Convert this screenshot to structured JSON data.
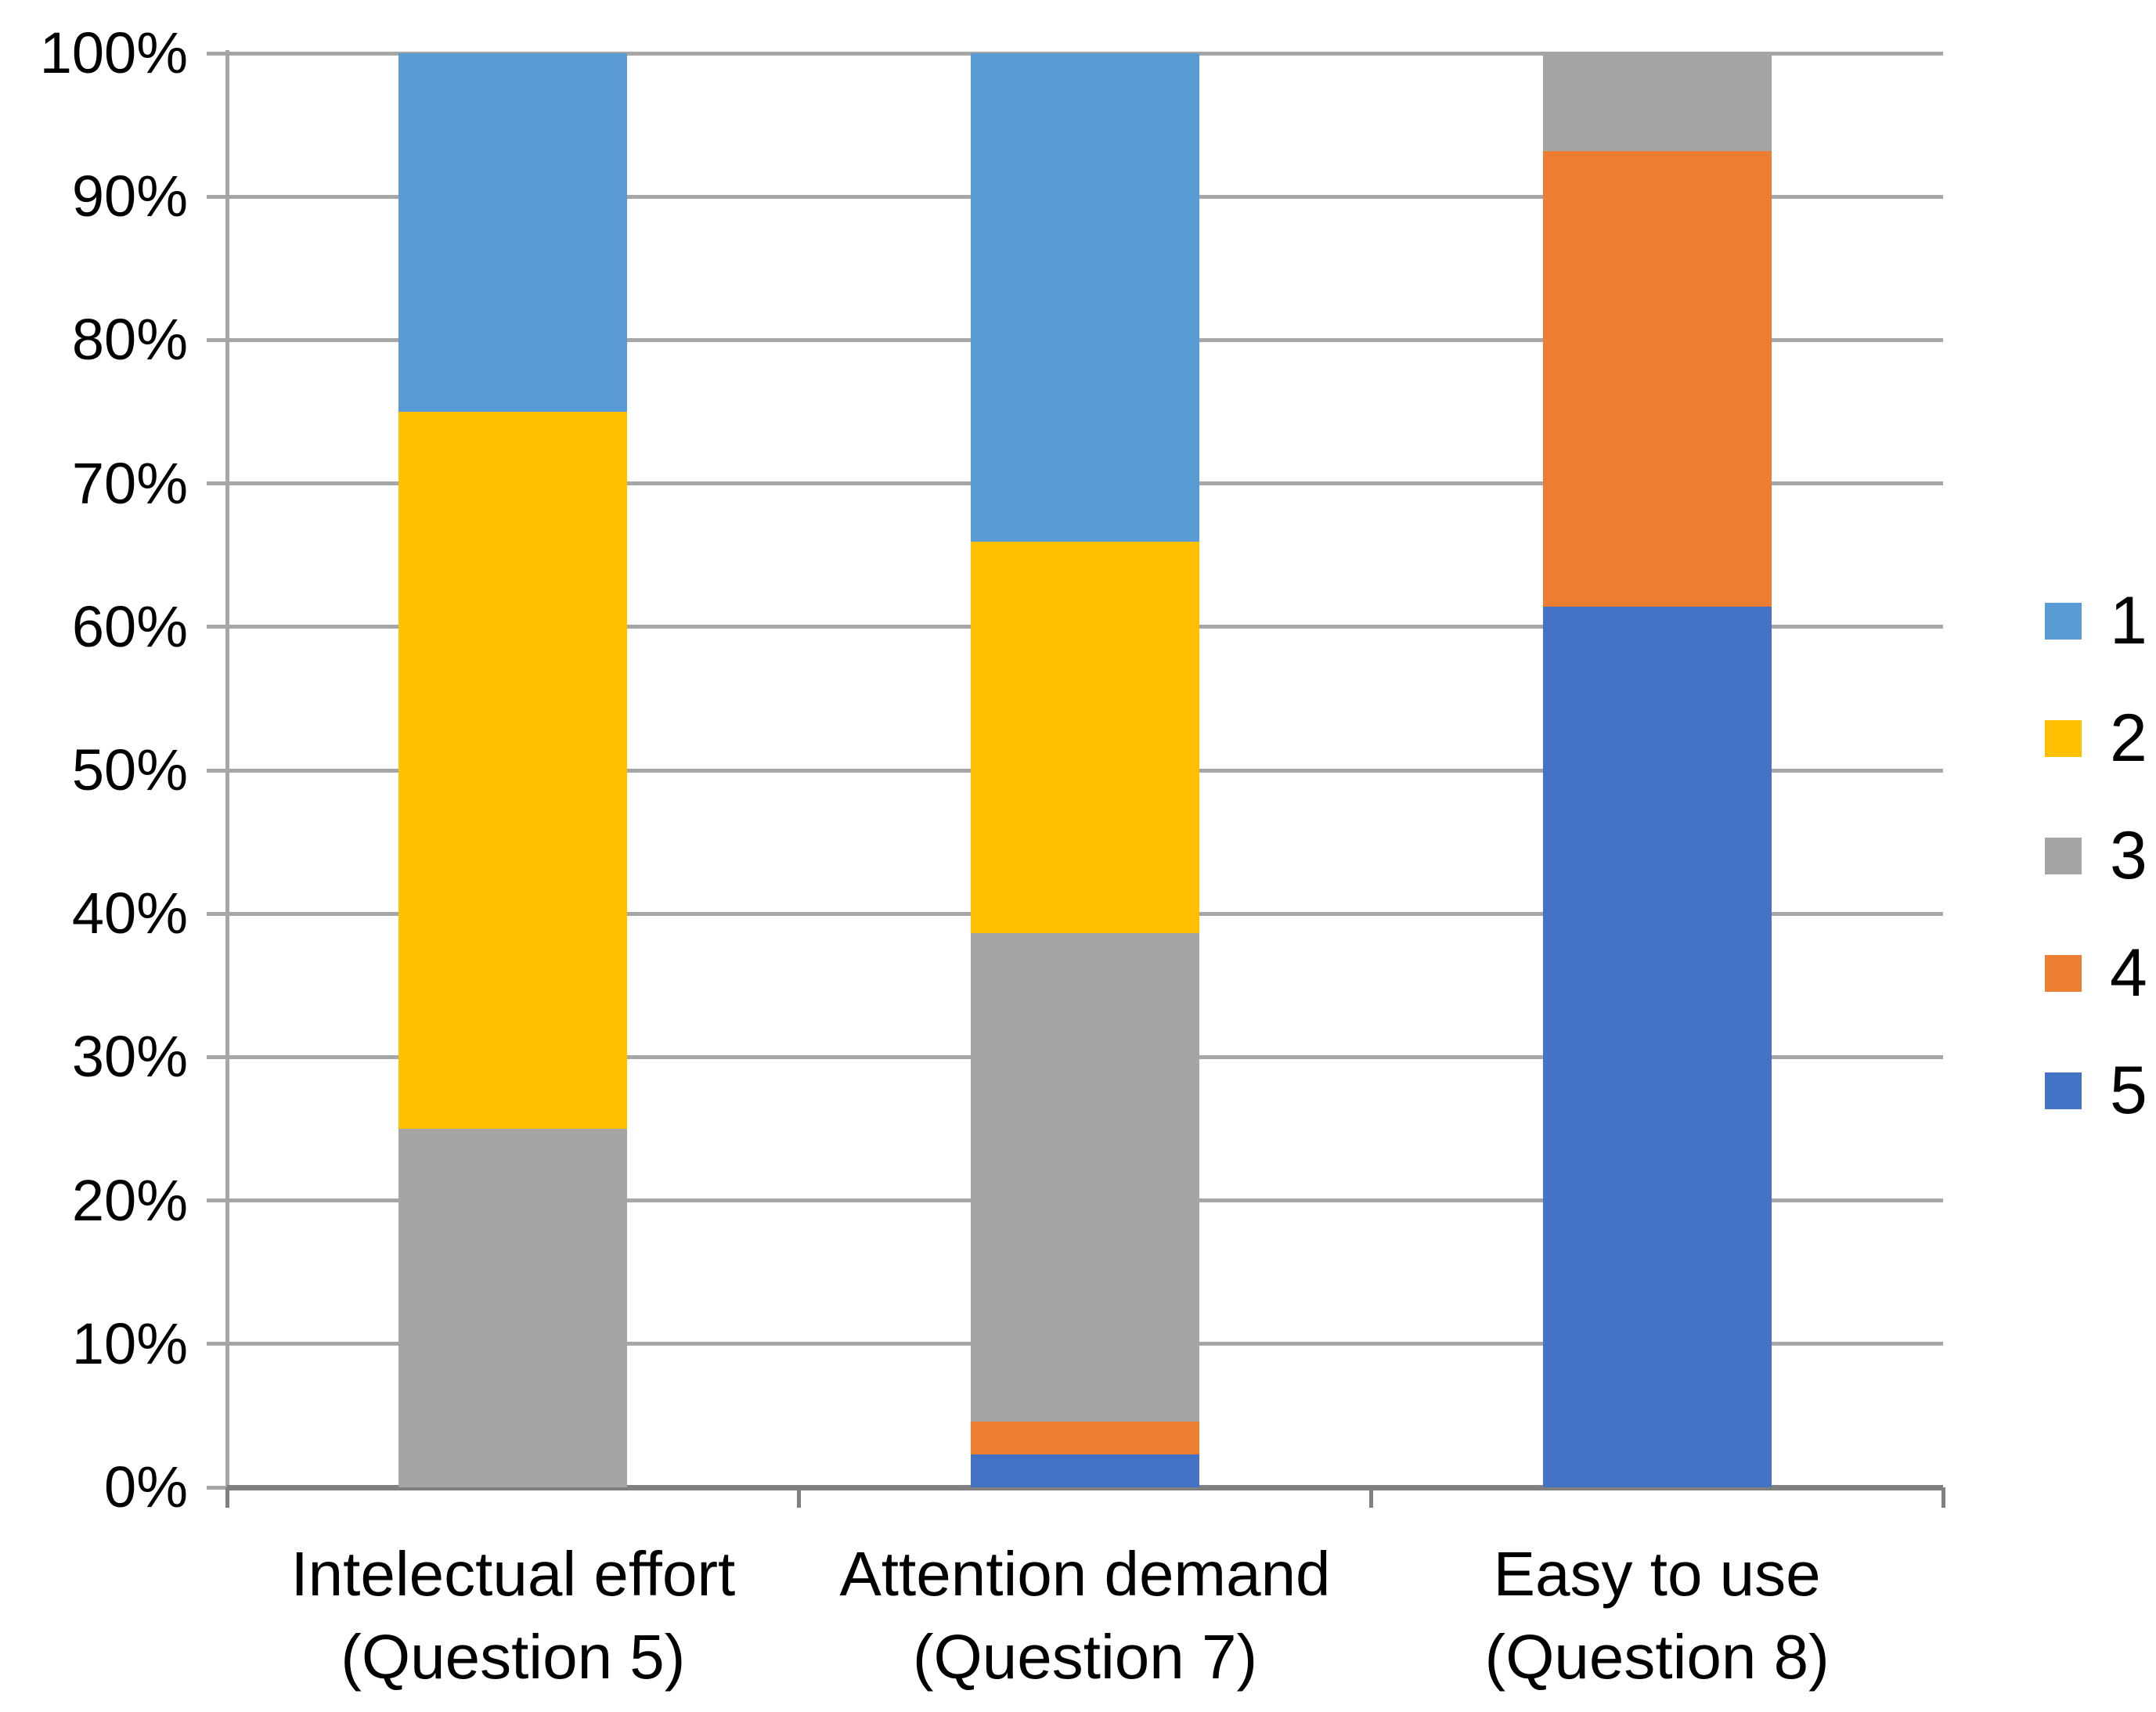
{
  "chart_data": {
    "type": "bar",
    "subtype": "stacked-100-percent",
    "orientation": "vertical",
    "title": "",
    "xlabel": "",
    "ylabel": "",
    "ylim": [
      0,
      100
    ],
    "y_unit": "%",
    "grid": {
      "horizontal": true,
      "vertical": false
    },
    "colors": {
      "gridline": "#A6A6A6",
      "axis": "#808080",
      "text": "#000000",
      "background": "#FFFFFF"
    },
    "y_ticks": [
      {
        "value": 0,
        "label": "0%"
      },
      {
        "value": 10,
        "label": "10%"
      },
      {
        "value": 20,
        "label": "20%"
      },
      {
        "value": 30,
        "label": "30%"
      },
      {
        "value": 40,
        "label": "40%"
      },
      {
        "value": 50,
        "label": "50%"
      },
      {
        "value": 60,
        "label": "60%"
      },
      {
        "value": 70,
        "label": "70%"
      },
      {
        "value": 80,
        "label": "80%"
      },
      {
        "value": 90,
        "label": "90%"
      },
      {
        "value": 100,
        "label": "100%"
      }
    ],
    "categories": [
      {
        "line1": "Intelectual effort",
        "line2": "(Question 5)"
      },
      {
        "line1": "Attention demand",
        "line2": "(Question 7)"
      },
      {
        "line1": "Easy to use",
        "line2": "(Question 8)"
      }
    ],
    "series": [
      {
        "name": "1",
        "color": "#5B9BD5",
        "values": [
          25.0,
          34.1,
          0.0
        ]
      },
      {
        "name": "2",
        "color": "#FFC000",
        "values": [
          50.0,
          27.3,
          0.0
        ]
      },
      {
        "name": "3",
        "color": "#A5A5A5",
        "values": [
          25.0,
          34.1,
          6.8
        ]
      },
      {
        "name": "4",
        "color": "#ED7D31",
        "values": [
          0.0,
          2.3,
          31.8
        ]
      },
      {
        "name": "5",
        "color": "#4472C4",
        "values": [
          0.0,
          2.3,
          61.4
        ]
      }
    ],
    "stack_order_bottom_to_top": [
      "5",
      "4",
      "3",
      "2",
      "1"
    ],
    "legend": {
      "position": "right",
      "entries": [
        "1",
        "2",
        "3",
        "4",
        "5"
      ]
    }
  }
}
